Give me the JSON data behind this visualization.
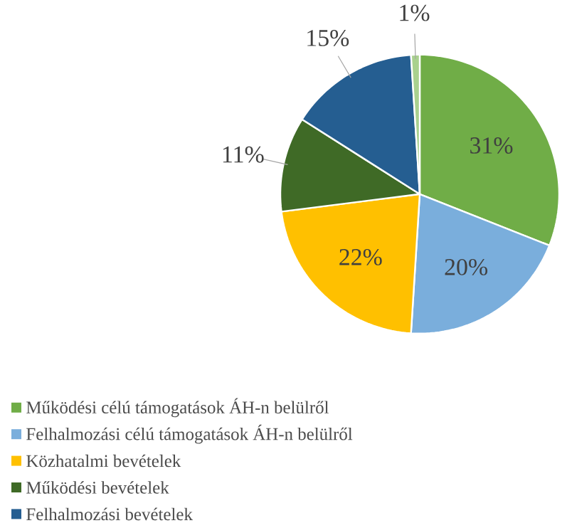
{
  "chart_data": {
    "type": "pie",
    "categories": [
      "Működési célú támogatások ÁH-n belülről",
      "Felhalmozási célú támogatások ÁH-n belülről",
      "Közhatalmi bevételek",
      "Működési bevételek",
      "Felhalmozási bevételek",
      null
    ],
    "values": [
      31,
      20,
      22,
      11,
      15,
      1
    ],
    "value_labels": [
      "31%",
      "20%",
      "22%",
      "11%",
      "15%",
      "1%"
    ],
    "colors": [
      "#70ad47",
      "#7aaedc",
      "#ffc000",
      "#3f6a26",
      "#255e91",
      "#a9d18e"
    ],
    "legend": "bottom"
  }
}
